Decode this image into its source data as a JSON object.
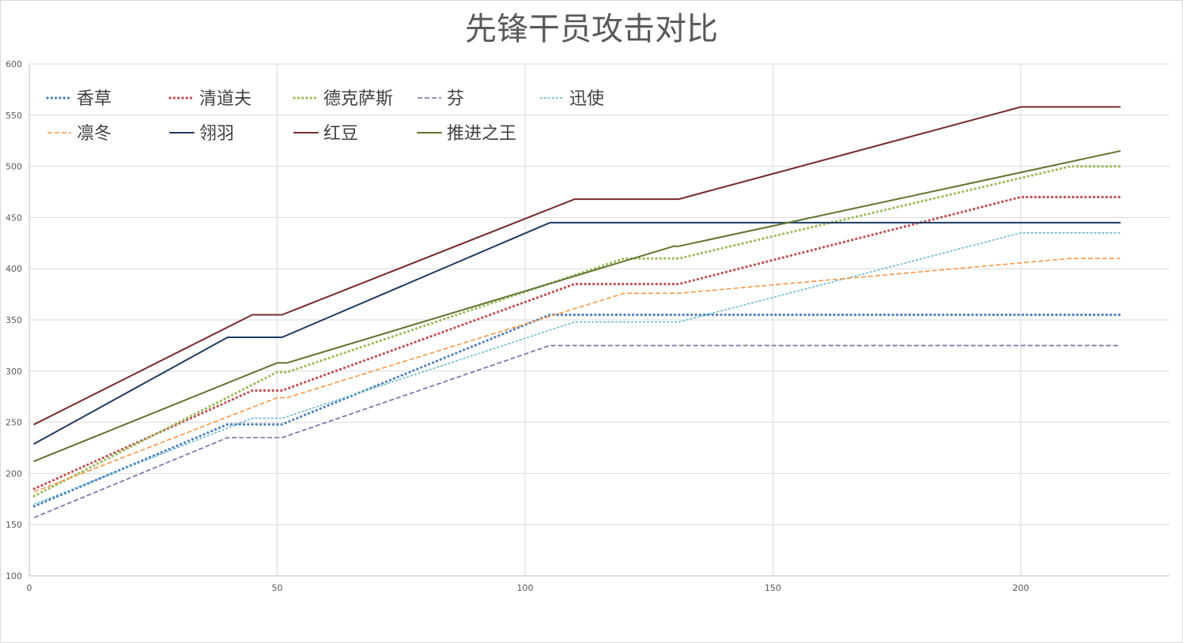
{
  "chart_data": {
    "type": "line",
    "title": "先锋干员攻击对比",
    "xlabel": "",
    "ylabel": "",
    "xlim": [
      0,
      230
    ],
    "ylim": [
      100,
      600
    ],
    "xticks": [
      0,
      50,
      100,
      150,
      200
    ],
    "yticks": [
      100,
      150,
      200,
      250,
      300,
      350,
      400,
      450,
      500,
      550,
      600
    ],
    "grid": true,
    "legend_position": "top-left",
    "series": [
      {
        "name": "香草",
        "color": "#4f81bd",
        "style": "dotted",
        "points": [
          [
            1,
            168
          ],
          [
            40,
            248
          ],
          [
            51,
            248
          ],
          [
            105,
            355
          ],
          [
            220,
            355
          ]
        ]
      },
      {
        "name": "清道夫",
        "color": "#c0504d",
        "style": "dotted",
        "points": [
          [
            1,
            185
          ],
          [
            45,
            281
          ],
          [
            51,
            281
          ],
          [
            110,
            385
          ],
          [
            131,
            385
          ],
          [
            200,
            470
          ],
          [
            220,
            470
          ]
        ]
      },
      {
        "name": "德克萨斯",
        "color": "#9bbb59",
        "style": "dotted",
        "points": [
          [
            1,
            178
          ],
          [
            50,
            299
          ],
          [
            52,
            299
          ],
          [
            120,
            410
          ],
          [
            131,
            410
          ],
          [
            210,
            500
          ],
          [
            220,
            500
          ]
        ]
      },
      {
        "name": "芬",
        "color": "#8064a2",
        "style": "dashed",
        "points": [
          [
            1,
            157
          ],
          [
            40,
            235
          ],
          [
            51,
            235
          ],
          [
            105,
            325
          ],
          [
            220,
            325
          ]
        ]
      },
      {
        "name": "迅使",
        "color": "#4bacc6",
        "style": "dashed-fine",
        "points": [
          [
            1,
            170
          ],
          [
            45,
            254
          ],
          [
            51,
            254
          ],
          [
            110,
            348
          ],
          [
            131,
            348
          ],
          [
            200,
            435
          ],
          [
            220,
            435
          ]
        ]
      },
      {
        "name": "凛冬",
        "color": "#f79646",
        "style": "dashed",
        "points": [
          [
            1,
            182
          ],
          [
            50,
            274
          ],
          [
            52,
            274
          ],
          [
            120,
            376
          ],
          [
            131,
            376
          ],
          [
            210,
            410
          ],
          [
            220,
            410
          ]
        ]
      },
      {
        "name": "翎羽",
        "color": "#1f3a5f",
        "style": "solid",
        "points": [
          [
            1,
            229
          ],
          [
            40,
            333
          ],
          [
            51,
            333
          ],
          [
            105,
            445
          ],
          [
            220,
            445
          ]
        ]
      },
      {
        "name": "红豆",
        "color": "#772c2a",
        "style": "solid",
        "points": [
          [
            1,
            248
          ],
          [
            45,
            355
          ],
          [
            51,
            355
          ],
          [
            110,
            468
          ],
          [
            131,
            468
          ],
          [
            200,
            558
          ],
          [
            220,
            558
          ]
        ]
      },
      {
        "name": "推进之王",
        "color": "#5f7530",
        "style": "solid",
        "points": [
          [
            1,
            212
          ],
          [
            50,
            308
          ],
          [
            52,
            308
          ],
          [
            130,
            422
          ],
          [
            131,
            422
          ],
          [
            220,
            515
          ]
        ]
      }
    ]
  }
}
